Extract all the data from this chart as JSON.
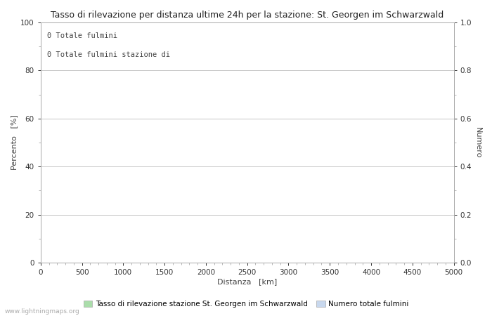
{
  "title": "Tasso di rilevazione per distanza ultime 24h per la stazione: St. Georgen im Schwarzwald",
  "xlabel": "Distanza   [km]",
  "ylabel_left": "Percento   [%]",
  "ylabel_right": "Numero",
  "annotation_line1": "0 Totale fulmini",
  "annotation_line2": "0 Totale fulmini stazione di",
  "xlim": [
    0,
    5000
  ],
  "ylim_left": [
    0,
    100
  ],
  "ylim_right": [
    0.0,
    1.0
  ],
  "xticks": [
    0,
    500,
    1000,
    1500,
    2000,
    2500,
    3000,
    3500,
    4000,
    4500,
    5000
  ],
  "yticks_left_major": [
    0,
    20,
    40,
    60,
    80,
    100
  ],
  "yticks_left_minor": [
    10,
    30,
    50,
    70,
    90
  ],
  "yticks_right_major": [
    0.0,
    0.2,
    0.4,
    0.6,
    0.8,
    1.0
  ],
  "yticks_right_minor": [
    0.1,
    0.3,
    0.5,
    0.7,
    0.9
  ],
  "grid_color": "#bbbbbb",
  "background_color": "#ffffff",
  "plot_bg_color": "#ffffff",
  "legend_green_label": "Tasso di rilevazione stazione St. Georgen im Schwarzwald",
  "legend_blue_label": "Numero totale fulmini",
  "legend_green_color": "#aaddaa",
  "legend_blue_color": "#c8d8ee",
  "watermark": "www.lightningmaps.org",
  "title_fontsize": 9,
  "axis_label_fontsize": 8,
  "tick_fontsize": 7.5,
  "annotation_fontsize": 7.5,
  "legend_fontsize": 7.5
}
